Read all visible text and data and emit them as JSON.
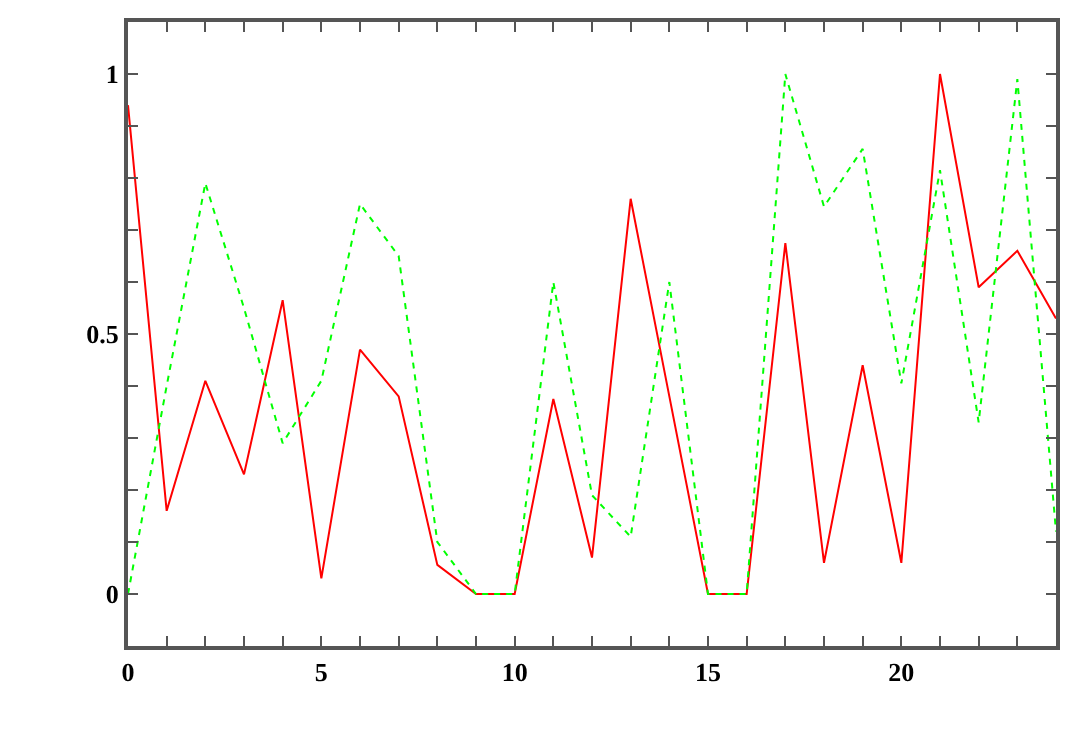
{
  "chart_data": {
    "type": "line",
    "x": [
      0,
      1,
      2,
      3,
      4,
      5,
      6,
      7,
      8,
      9,
      10,
      11,
      12,
      13,
      14,
      15,
      16,
      17,
      18,
      19,
      20,
      21,
      22,
      23,
      24
    ],
    "series": [
      {
        "color": "#ff0000",
        "line_style": "solid",
        "values": [
          0.94,
          0.16,
          0.41,
          0.23,
          0.565,
          0.03,
          0.47,
          0.38,
          0.056,
          0,
          0,
          0.375,
          0.07,
          0.76,
          0.38,
          0,
          0,
          0.675,
          0.06,
          0.44,
          0.06,
          1.0,
          0.59,
          0.66,
          0.53
        ]
      },
      {
        "color": "#00ff00",
        "line_style": "dotted",
        "values": [
          0,
          0.4,
          0.79,
          0.55,
          0.29,
          0.41,
          0.75,
          0.65,
          0.1,
          0,
          0,
          0.6,
          0.19,
          0.11,
          0.6,
          0,
          0,
          1.0,
          0.745,
          0.856,
          0.405,
          0.815,
          0.33,
          0.99,
          0.12
        ]
      }
    ],
    "xlim": [
      0,
      24
    ],
    "ylim": [
      -0.1,
      1.1
    ],
    "xticks": [
      0,
      {
        "value": 1,
        "label": null
      },
      {
        "value": 2,
        "label": null
      },
      {
        "value": 3,
        "label": null
      },
      {
        "value": 4,
        "label": null
      },
      5,
      {
        "value": 6,
        "label": null
      },
      {
        "value": 7,
        "label": null
      },
      {
        "value": 8,
        "label": null
      },
      {
        "value": 9,
        "label": null
      },
      10,
      {
        "value": 11,
        "label": null
      },
      {
        "value": 12,
        "label": null
      },
      {
        "value": 13,
        "label": null
      },
      {
        "value": 14,
        "label": null
      },
      15,
      {
        "value": 16,
        "label": null
      },
      {
        "value": 17,
        "label": null
      },
      {
        "value": 18,
        "label": null
      },
      {
        "value": 19,
        "label": null
      },
      20,
      {
        "value": 21,
        "label": null
      },
      {
        "value": 22,
        "label": null
      },
      {
        "value": 23,
        "label": null
      }
    ],
    "yticks": [
      {
        "value": -0.1,
        "label": null
      },
      0,
      {
        "value": 0.1,
        "label": null
      },
      {
        "value": 0.2,
        "label": null
      },
      {
        "value": 0.3,
        "label": null
      },
      {
        "value": 0.4,
        "label": null
      },
      0.5,
      {
        "value": 0.6,
        "label": null
      },
      {
        "value": 0.7,
        "label": null
      },
      {
        "value": 0.8,
        "label": null
      },
      {
        "value": 0.9,
        "label": null
      },
      1
    ],
    "marker": "none"
  }
}
